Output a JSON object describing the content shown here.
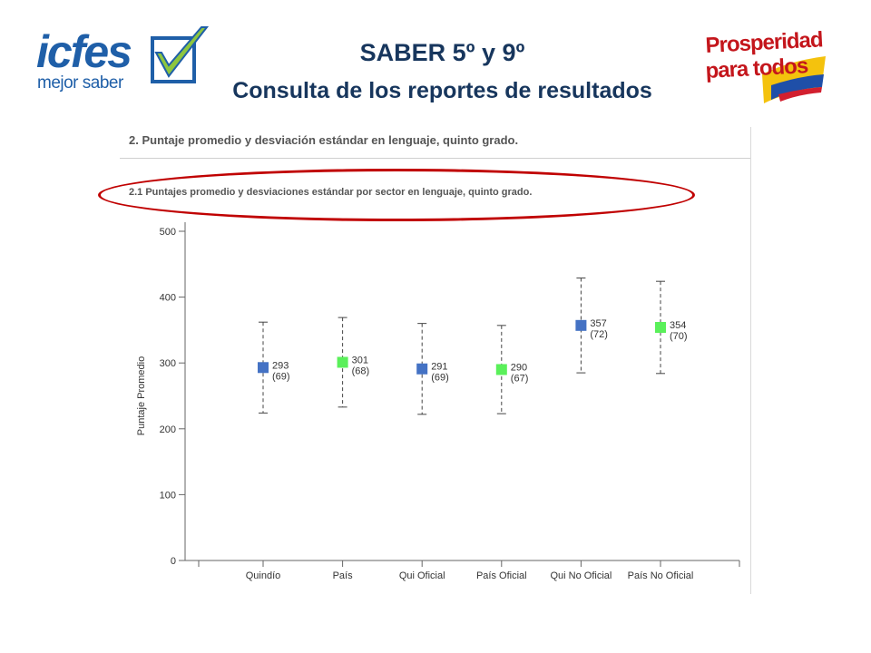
{
  "header": {
    "title": "SABER 5º y 9º",
    "subtitle": "Consulta de los reportes de resultados",
    "logo_left_main": "icfes",
    "logo_left_sub": "mejor saber",
    "logo_right_line1": "Prosperidad",
    "logo_right_line2": "para todos"
  },
  "panel": {
    "section_title": "2. Puntaje promedio y desviación estándar en lenguaje, quinto grado.",
    "subsection_title": "2.1 Puntajes promedio y desviaciones estándar por sector en lenguaje, quinto grado."
  },
  "colors": {
    "title": "#17365d",
    "blue_marker": "#4472c4",
    "green_marker": "#5af05a",
    "highlight": "#c00000"
  },
  "chart_data": {
    "type": "scatter",
    "ylabel": "Puntaje Promedio",
    "ylim": [
      0,
      500
    ],
    "yticks": [
      0,
      100,
      200,
      300,
      400,
      500
    ],
    "categories": [
      "Quindío",
      "País",
      "Qui Oficial",
      "País Oficial",
      "Qui No Oficial",
      "País No Oficial"
    ],
    "points": [
      {
        "category": "Quindío",
        "mean": 293,
        "sd": 69,
        "mean_label": "293",
        "sd_label": "(69)",
        "color": "blue"
      },
      {
        "category": "País",
        "mean": 301,
        "sd": 68,
        "mean_label": "301",
        "sd_label": "(68)",
        "color": "green"
      },
      {
        "category": "Qui Oficial",
        "mean": 291,
        "sd": 69,
        "mean_label": "291",
        "sd_label": "(69)",
        "color": "blue"
      },
      {
        "category": "País Oficial",
        "mean": 290,
        "sd": 67,
        "mean_label": "290",
        "sd_label": "(67)",
        "color": "green"
      },
      {
        "category": "Qui No Oficial",
        "mean": 357,
        "sd": 72,
        "mean_label": "357",
        "sd_label": "(72)",
        "color": "blue"
      },
      {
        "category": "País No Oficial",
        "mean": 354,
        "sd": 70,
        "mean_label": "354",
        "sd_label": "(70)",
        "color": "green"
      }
    ],
    "grid": false
  }
}
